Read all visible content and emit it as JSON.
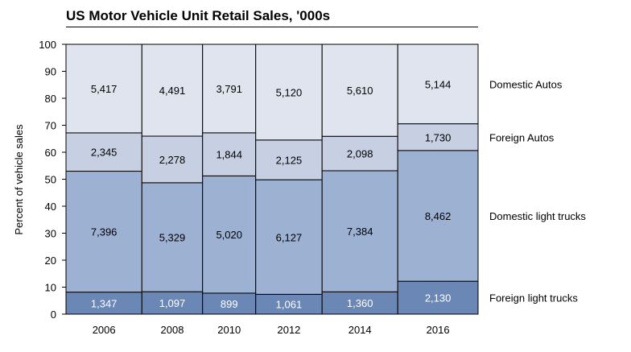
{
  "chart_data": {
    "type": "bar",
    "subtype": "marimekko-stacked-percent",
    "title": "US Motor Vehicle Unit Retail Sales, '000s",
    "xlabel": "",
    "ylabel": "Percent of vehicle sales",
    "ylim": [
      0,
      100
    ],
    "yticks": [
      0,
      10,
      20,
      30,
      40,
      50,
      60,
      70,
      80,
      90,
      100
    ],
    "categories": [
      "2006",
      "2008",
      "2010",
      "2012",
      "2014",
      "2016"
    ],
    "series": [
      {
        "name": "Foreign light trucks",
        "values": [
          1347,
          1097,
          899,
          1061,
          1360,
          2130
        ],
        "labels": [
          "1,347",
          "1,097",
          "899",
          "1,061",
          "1,360",
          "2,130"
        ],
        "color": "#6B87B5",
        "text_color": "#ffffff"
      },
      {
        "name": "Domestic light trucks",
        "values": [
          7396,
          5329,
          5020,
          6127,
          7384,
          8462
        ],
        "labels": [
          "7,396",
          "5,329",
          "5,020",
          "6,127",
          "7,384",
          "8,462"
        ],
        "color": "#9DB1D3",
        "text_color": "#000000"
      },
      {
        "name": "Foreign Autos",
        "values": [
          2345,
          2278,
          1844,
          2125,
          2098,
          1730
        ],
        "labels": [
          "2,345",
          "2,278",
          "1,844",
          "2,125",
          "2,098",
          "1,730"
        ],
        "color": "#C6D0E2",
        "text_color": "#000000"
      },
      {
        "name": "Domestic Autos",
        "values": [
          5417,
          4491,
          3791,
          5120,
          5610,
          5144
        ],
        "labels": [
          "5,417",
          "4,491",
          "3,791",
          "5,120",
          "5,610",
          "5,144"
        ],
        "color": "#DFE4EF",
        "text_color": "#000000"
      }
    ],
    "legend_placement": "right",
    "grid": false
  }
}
